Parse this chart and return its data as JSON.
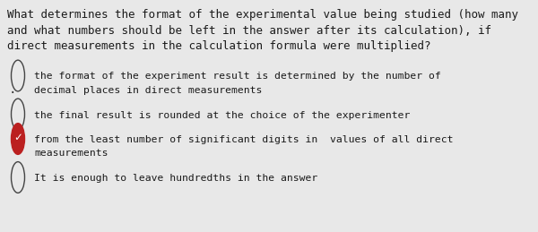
{
  "background_color": "#e8e8e8",
  "title_lines": [
    "What determines the format of the experimental value being studied (how many",
    "and what numbers should be left in the answer after its calculation), if",
    "direct measurements in the calculation formula were multiplied?"
  ],
  "options": [
    {
      "lines": [
        "the format of the experiment result is determined by the number of",
        "decimal places in direct measurements"
      ],
      "selected": false,
      "correct": false,
      "has_dot": true
    },
    {
      "lines": [
        "the final result is rounded at the choice of the experimenter"
      ],
      "selected": false,
      "correct": false,
      "has_dot": false
    },
    {
      "lines": [
        "from the least number of significant digits in  values of all direct",
        "measurements"
      ],
      "selected": true,
      "correct": true,
      "has_dot": false
    },
    {
      "lines": [
        "It is enough to leave hundredths in the answer"
      ],
      "selected": false,
      "correct": false,
      "has_dot": false
    }
  ],
  "title_fontsize": 9.0,
  "option_fontsize": 8.2,
  "text_color": "#1a1a1a",
  "circle_edge_color": "#444444",
  "checked_bg_color": "#bb2020",
  "checked_check_color": "#ffffff",
  "dot_color": "#333333",
  "font_family": "monospace"
}
